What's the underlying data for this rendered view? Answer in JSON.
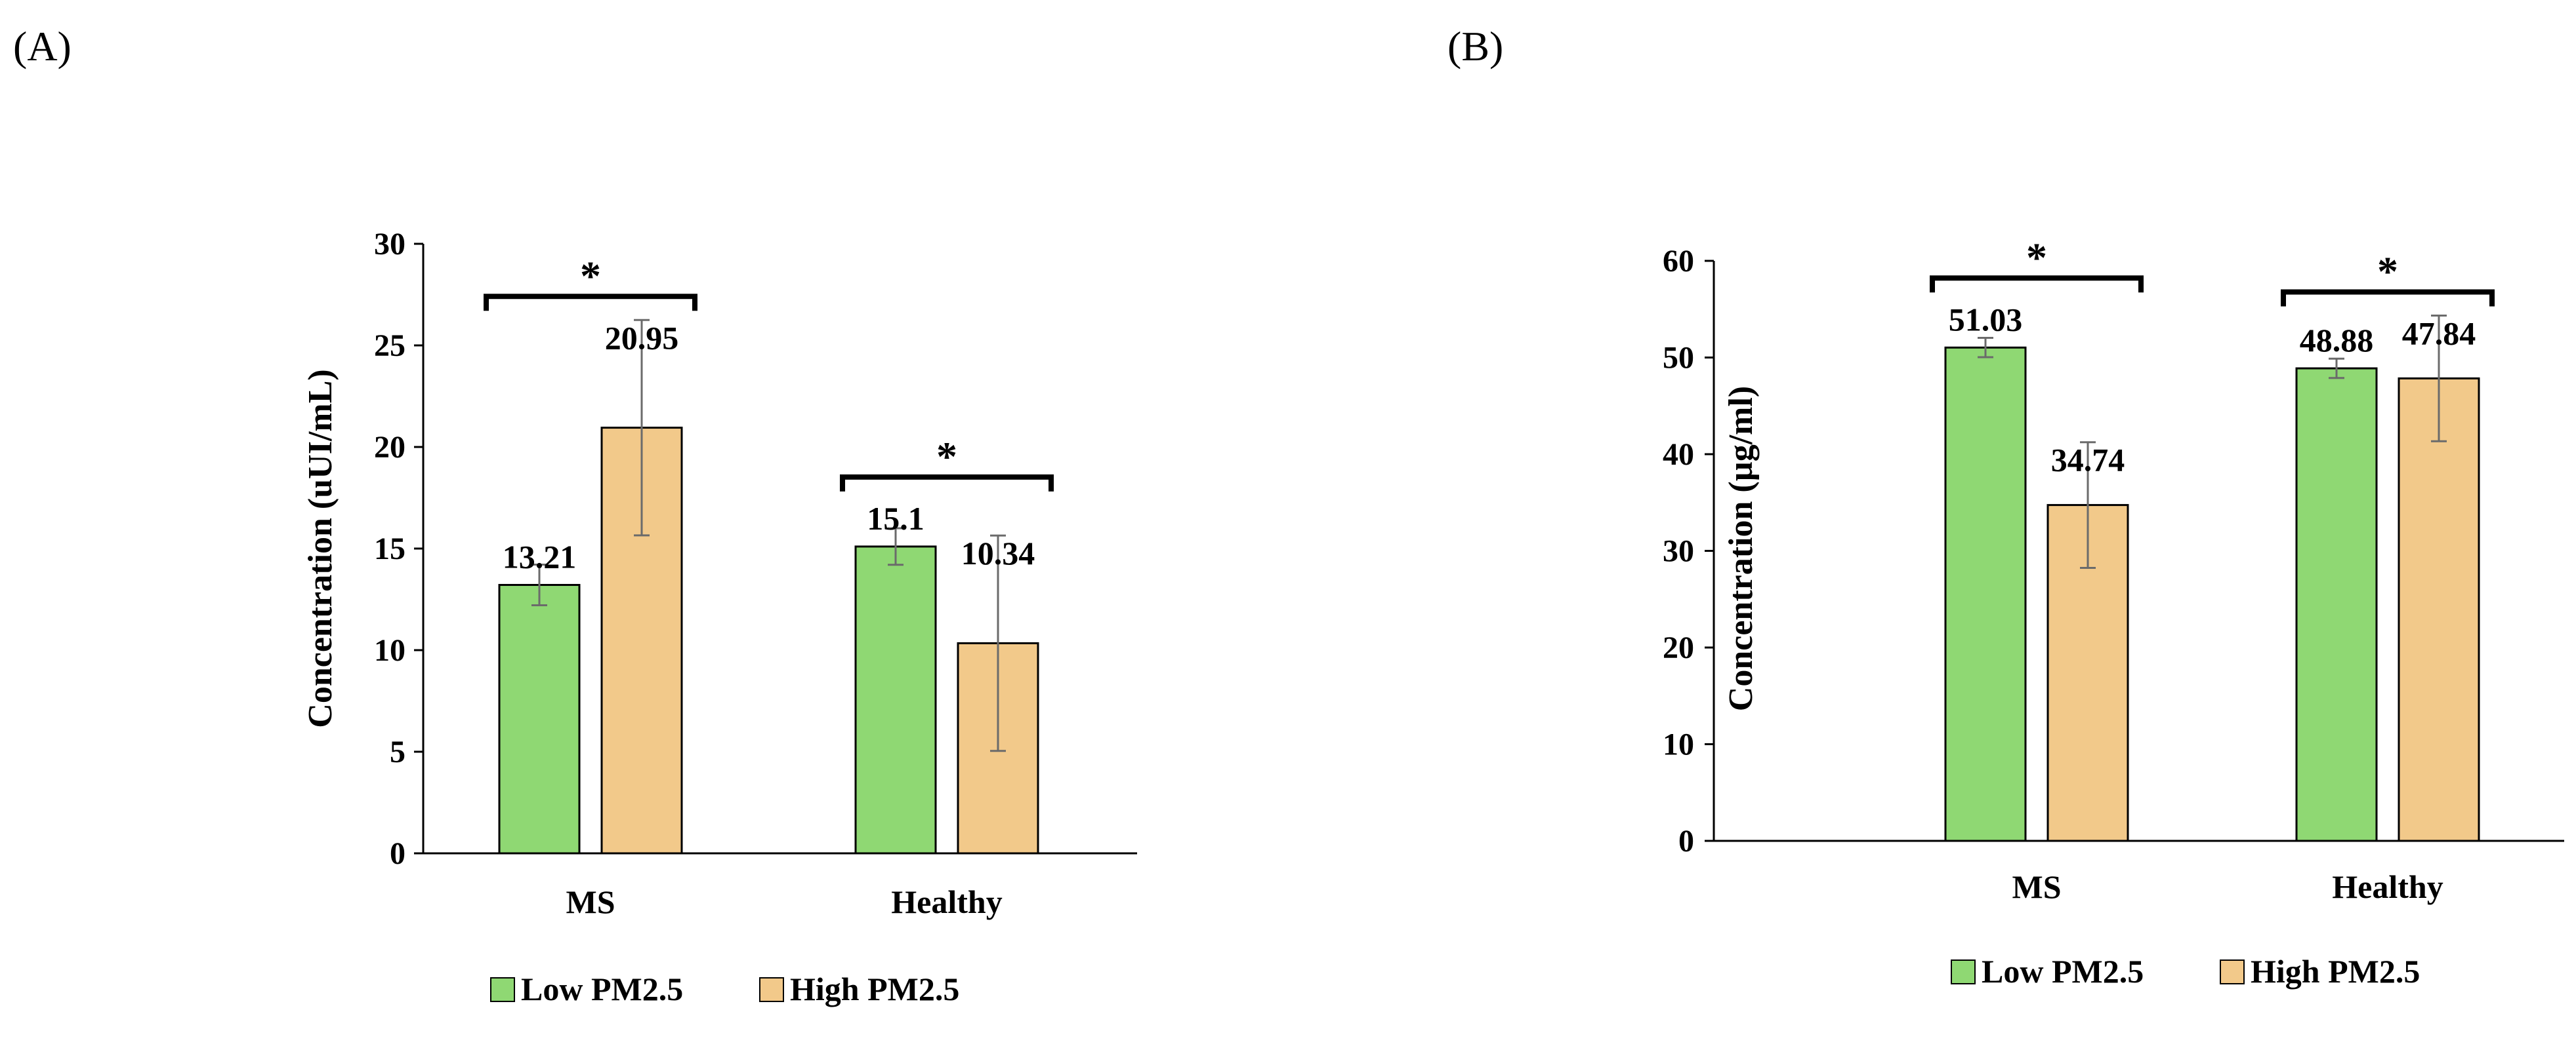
{
  "colors": {
    "low": "#8fd873",
    "high": "#f2c98a",
    "bar_border": "#000000",
    "error_bar": "#6b6b6b",
    "axis": "#000000"
  },
  "chart_data": [
    {
      "panel": "(A)",
      "type": "bar",
      "categories": [
        "MS",
        "Healthy"
      ],
      "series": [
        {
          "name": "Low PM2.5",
          "values": [
            13.21,
            15.1
          ],
          "errors": [
            1.0,
            0.9
          ]
        },
        {
          "name": "High PM2.5",
          "values": [
            20.95,
            10.34
          ],
          "errors": [
            5.3,
            5.3
          ]
        }
      ],
      "value_labels": [
        [
          "13.21",
          "15.1"
        ],
        [
          "20.95",
          "10.34"
        ]
      ],
      "ylabel": "Concentration (uUI/mL)",
      "ylim": [
        0,
        30
      ],
      "yticks": [
        0,
        5,
        10,
        15,
        20,
        25,
        30
      ],
      "significance": [
        {
          "category": "MS",
          "label": "*"
        },
        {
          "category": "Healthy",
          "label": "*"
        }
      ],
      "legend": [
        "Low PM2.5",
        "High PM2.5"
      ],
      "grid": false
    },
    {
      "panel": "(B)",
      "type": "bar",
      "categories": [
        "MS",
        "Healthy"
      ],
      "series": [
        {
          "name": "Low PM2.5",
          "values": [
            51.03,
            48.88
          ],
          "errors": [
            1.0,
            1.0
          ]
        },
        {
          "name": "High PM2.5",
          "values": [
            34.74,
            47.84
          ],
          "errors": [
            6.5,
            6.5
          ]
        }
      ],
      "value_labels": [
        [
          "51.03",
          "48.88"
        ],
        [
          "34.74",
          "47.84"
        ]
      ],
      "ylabel": "Concentration (µg/ml)",
      "ylim": [
        0,
        60
      ],
      "yticks": [
        0,
        10,
        20,
        30,
        40,
        50,
        60
      ],
      "significance": [
        {
          "category": "MS",
          "label": "*"
        },
        {
          "category": "Healthy",
          "label": "*"
        }
      ],
      "legend": [
        "Low PM2.5",
        "High PM2.5"
      ],
      "grid": false
    }
  ]
}
